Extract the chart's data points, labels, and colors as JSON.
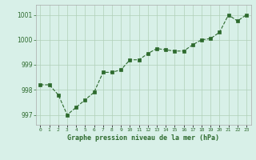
{
  "x": [
    0,
    1,
    2,
    3,
    4,
    5,
    6,
    7,
    8,
    9,
    10,
    11,
    12,
    13,
    14,
    15,
    16,
    17,
    18,
    19,
    20,
    21,
    22,
    23
  ],
  "y": [
    998.2,
    998.2,
    997.8,
    997.0,
    997.3,
    997.6,
    997.9,
    998.7,
    998.7,
    998.8,
    999.2,
    999.2,
    999.45,
    999.65,
    999.6,
    999.55,
    999.55,
    999.8,
    1000.0,
    1000.05,
    1000.3,
    1001.0,
    1000.75,
    1001.0
  ],
  "line_color": "#2d6a2d",
  "marker_color": "#2d6a2d",
  "bg_color": "#d8f0e8",
  "grid_color": "#b0d0b8",
  "xlabel": "Graphe pression niveau de la mer (hPa)",
  "xlabel_color": "#2d6a2d",
  "tick_color": "#2d6a2d",
  "ylim": [
    996.6,
    1001.4
  ],
  "yticks": [
    997,
    998,
    999,
    1000,
    1001
  ],
  "xlim": [
    -0.5,
    23.5
  ],
  "marker_size": 2.5,
  "line_width": 0.8
}
